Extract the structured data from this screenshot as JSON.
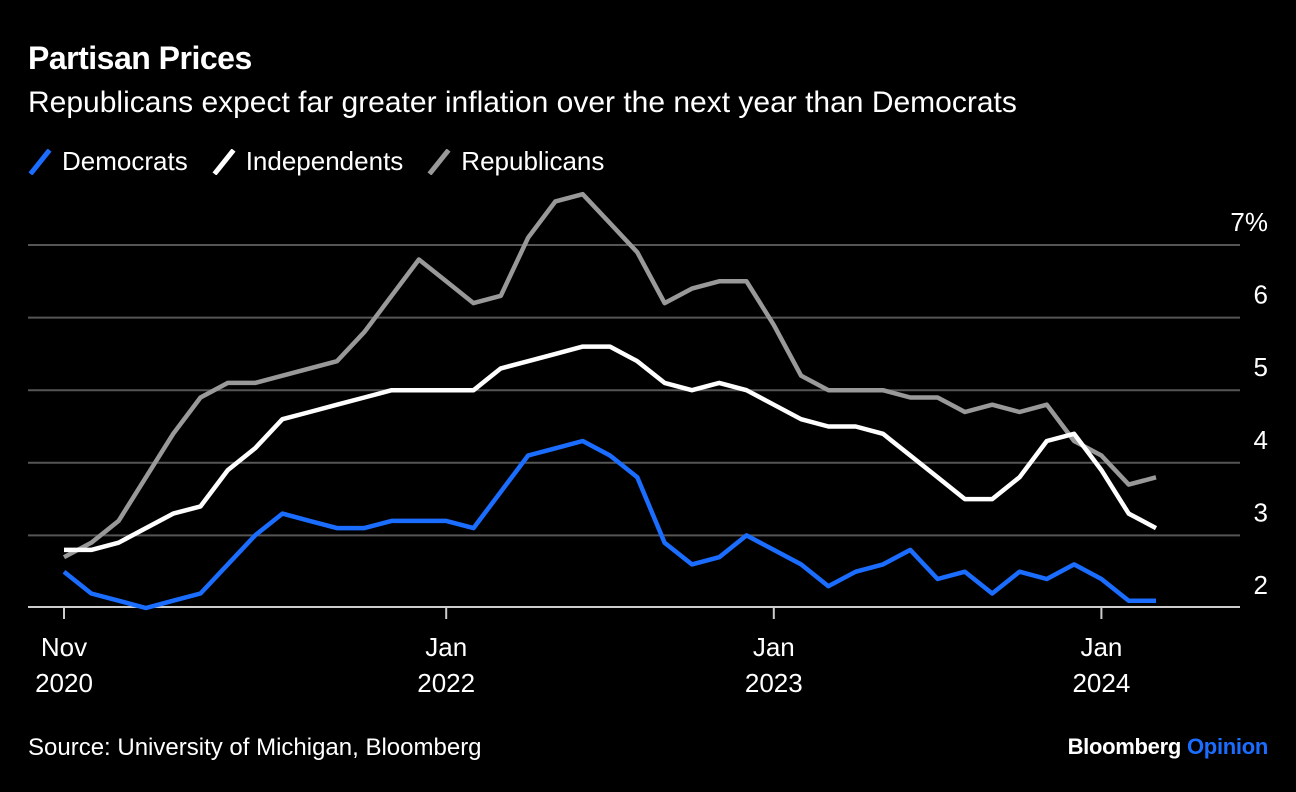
{
  "title": "Partisan Prices",
  "subtitle": "Republicans expect far greater inflation over the next year than Democrats",
  "source": "Source: University of Michigan, Bloomberg",
  "brand": {
    "main": "Bloomberg",
    "accent": "Opinion",
    "accent_color": "#1a6dff"
  },
  "chart_data": {
    "type": "line",
    "title": "Partisan Prices",
    "subtitle": "Republicans expect far greater inflation over the next year than Democrats",
    "y_ticks": [
      2,
      3,
      4,
      5,
      6,
      7
    ],
    "y_tick_labels": [
      "2",
      "3",
      "4",
      "5",
      "6",
      "7%"
    ],
    "ylim": [
      1.9,
      7.2
    ],
    "y_axis_side": "right",
    "grid": "horizontal",
    "legend_placement": "top-left",
    "x_ticks": [
      {
        "month": 0,
        "label1": "Nov",
        "label2": "2020"
      },
      {
        "month": 14,
        "label1": "Jan",
        "label2": "2022"
      },
      {
        "month": 26,
        "label1": "Jan",
        "label2": "2023"
      },
      {
        "month": 38,
        "label1": "Jan",
        "label2": "2024"
      }
    ],
    "x_start": "2020-11",
    "x_end": "2024-03",
    "series": [
      {
        "name": "Democrats",
        "color": "#1a6dff",
        "values": [
          2.5,
          2.2,
          2.1,
          2.0,
          2.1,
          2.2,
          2.6,
          3.0,
          3.3,
          3.2,
          3.1,
          3.1,
          3.2,
          3.2,
          3.2,
          3.1,
          3.6,
          4.1,
          4.2,
          4.3,
          4.1,
          3.8,
          2.9,
          2.6,
          2.7,
          3.0,
          2.8,
          2.6,
          2.3,
          2.5,
          2.6,
          2.8,
          2.4,
          2.5,
          2.2,
          2.5,
          2.4,
          2.6,
          2.4,
          2.1,
          2.1
        ]
      },
      {
        "name": "Independents",
        "color": "#ffffff",
        "values": [
          2.8,
          2.8,
          2.9,
          3.1,
          3.3,
          3.4,
          3.9,
          4.2,
          4.6,
          4.7,
          4.8,
          4.9,
          5.0,
          5.0,
          5.0,
          5.0,
          5.3,
          5.4,
          5.5,
          5.6,
          5.6,
          5.4,
          5.1,
          5.0,
          5.1,
          5.0,
          4.8,
          4.6,
          4.5,
          4.5,
          4.4,
          4.1,
          3.8,
          3.5,
          3.5,
          3.8,
          4.3,
          4.4,
          3.9,
          3.3,
          3.1
        ]
      },
      {
        "name": "Republicans",
        "color": "#999999",
        "values": [
          2.7,
          2.9,
          3.2,
          3.8,
          4.4,
          4.9,
          5.1,
          5.1,
          5.2,
          5.3,
          5.4,
          5.8,
          6.3,
          6.8,
          6.5,
          6.2,
          6.3,
          7.1,
          7.6,
          7.7,
          7.3,
          6.9,
          6.2,
          6.4,
          6.5,
          6.5,
          5.9,
          5.2,
          5.0,
          5.0,
          5.0,
          4.9,
          4.9,
          4.7,
          4.8,
          4.7,
          4.8,
          4.3,
          4.1,
          3.7,
          3.8
        ]
      }
    ]
  }
}
